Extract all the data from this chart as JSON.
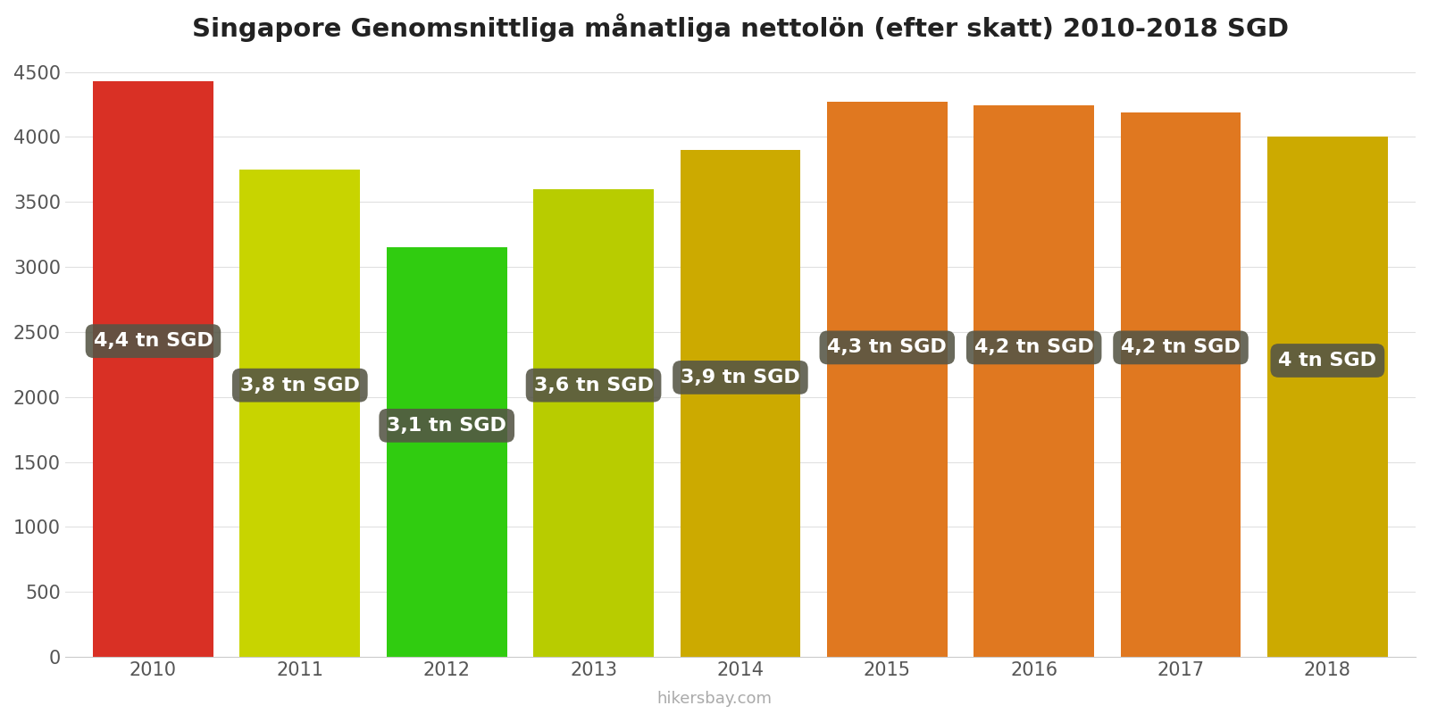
{
  "years": [
    2010,
    2011,
    2012,
    2013,
    2014,
    2015,
    2016,
    2017,
    2018
  ],
  "values": [
    4430,
    3750,
    3150,
    3600,
    3900,
    4270,
    4240,
    4190,
    4000
  ],
  "bar_colors": [
    "#d93025",
    "#c8d400",
    "#30cc10",
    "#b8cc00",
    "#ccaa00",
    "#e07820",
    "#e07820",
    "#e07820",
    "#ccaa00"
  ],
  "labels": [
    "4,4 tn SGD",
    "3,8 tn SGD",
    "3,1 tn SGD",
    "3,6 tn SGD",
    "3,9 tn SGD",
    "4,3 tn SGD",
    "4,2 tn SGD",
    "4,2 tn SGD",
    "4 tn SGD"
  ],
  "label_y_values": [
    2430,
    2090,
    1780,
    2090,
    2150,
    2380,
    2380,
    2380,
    2280
  ],
  "title": "Singapore Genomsnittliga månatliga nettolön (efter skatt) 2010-2018 SGD",
  "ylim": [
    0,
    4600
  ],
  "yticks": [
    0,
    500,
    1000,
    1500,
    2000,
    2500,
    3000,
    3500,
    4000,
    4500
  ],
  "label_box_color": "#555545",
  "label_text_color": "#ffffff",
  "watermark": "hikersbay.com",
  "background_color": "#ffffff",
  "title_fontsize": 21,
  "tick_fontsize": 15,
  "label_fontsize": 16,
  "bar_width": 0.82
}
